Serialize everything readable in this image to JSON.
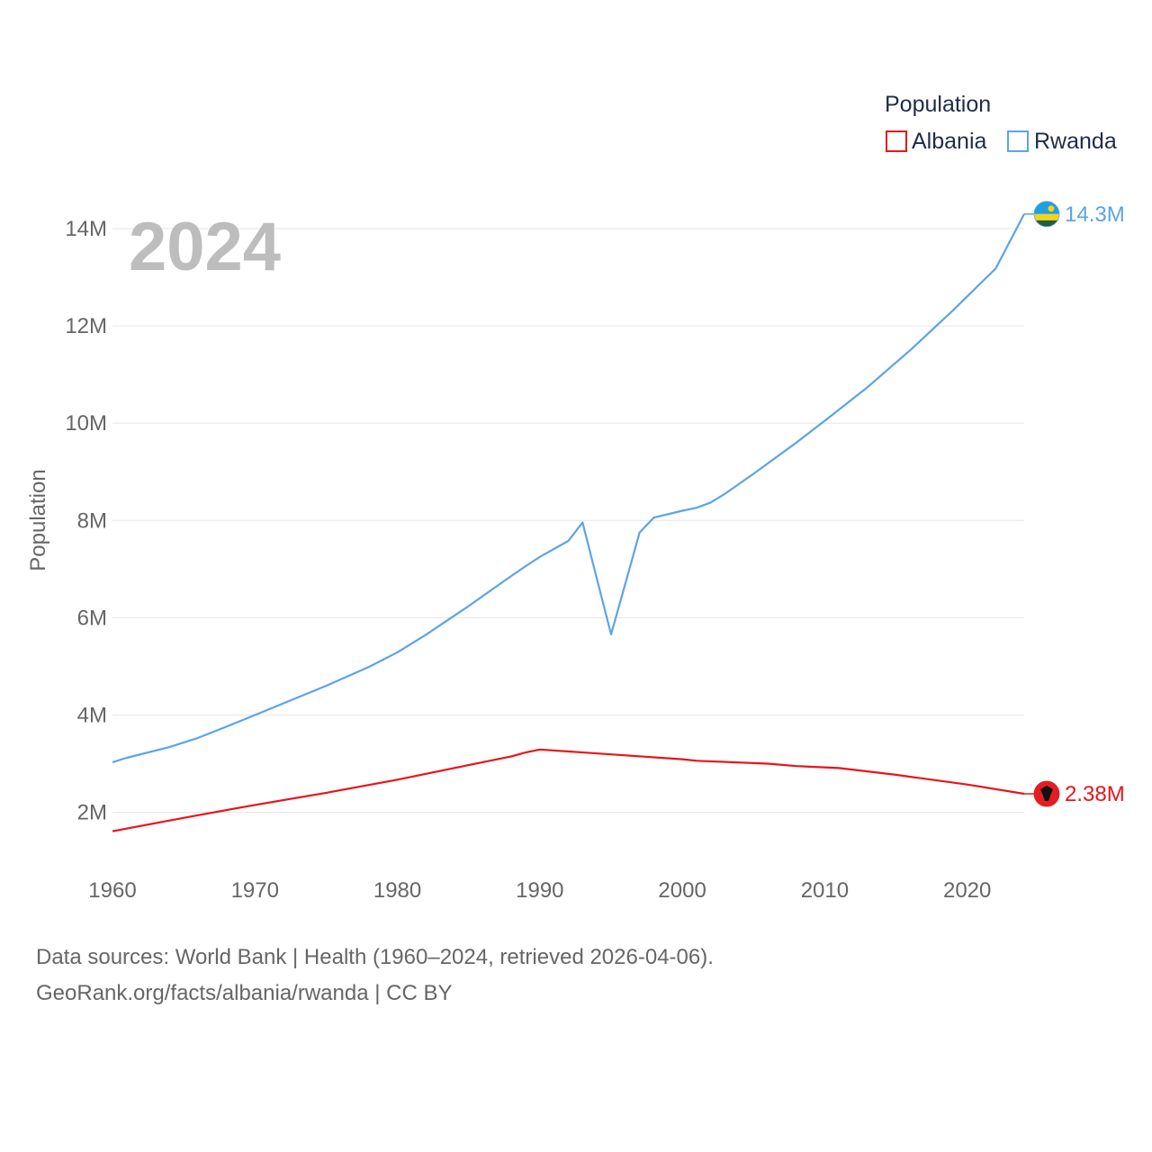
{
  "chart_data": {
    "type": "line",
    "year_display": "2024",
    "legend_title": "Population",
    "ylabel": "Population",
    "xlim": [
      1960,
      2024
    ],
    "ylim": [
      900000,
      15000000
    ],
    "x_ticks": [
      1960,
      1970,
      1980,
      1990,
      2000,
      2010,
      2020
    ],
    "y_ticks": [
      {
        "value": 2000000,
        "label": "2M"
      },
      {
        "value": 4000000,
        "label": "4M"
      },
      {
        "value": 6000000,
        "label": "6M"
      },
      {
        "value": 8000000,
        "label": "8M"
      },
      {
        "value": 10000000,
        "label": "10M"
      },
      {
        "value": 12000000,
        "label": "12M"
      },
      {
        "value": 14000000,
        "label": "14M"
      }
    ],
    "series": [
      {
        "name": "Albania",
        "color": "#e8141a",
        "end_label": "2.38M",
        "flag": "albania-flag-icon",
        "points": [
          [
            1960,
            1610000
          ],
          [
            1964,
            1830000
          ],
          [
            1966,
            1940000
          ],
          [
            1970,
            2150000
          ],
          [
            1975,
            2400000
          ],
          [
            1980,
            2670000
          ],
          [
            1985,
            2970000
          ],
          [
            1988,
            3150000
          ],
          [
            1989,
            3230000
          ],
          [
            1990,
            3290000
          ],
          [
            1995,
            3190000
          ],
          [
            2000,
            3090000
          ],
          [
            2001,
            3060000
          ],
          [
            2006,
            3000000
          ],
          [
            2008,
            2950000
          ],
          [
            2011,
            2910000
          ],
          [
            2015,
            2770000
          ],
          [
            2020,
            2570000
          ],
          [
            2024,
            2380000
          ]
        ]
      },
      {
        "name": "Rwanda",
        "color": "#5ba4e6",
        "end_label": "14.3M",
        "flag": "rwanda-flag-icon",
        "points": [
          [
            1960,
            3030000
          ],
          [
            1961,
            3120000
          ],
          [
            1964,
            3340000
          ],
          [
            1966,
            3530000
          ],
          [
            1968,
            3760000
          ],
          [
            1970,
            4000000
          ],
          [
            1972,
            4240000
          ],
          [
            1975,
            4600000
          ],
          [
            1978,
            4990000
          ],
          [
            1980,
            5290000
          ],
          [
            1982,
            5650000
          ],
          [
            1985,
            6240000
          ],
          [
            1988,
            6860000
          ],
          [
            1989,
            7060000
          ],
          [
            1990,
            7250000
          ],
          [
            1992,
            7580000
          ],
          [
            1993,
            7960000
          ],
          [
            1994,
            6800000
          ],
          [
            1995,
            5660000
          ],
          [
            1996,
            6700000
          ],
          [
            1997,
            7750000
          ],
          [
            1998,
            8060000
          ],
          [
            2000,
            8200000
          ],
          [
            2001,
            8260000
          ],
          [
            2002,
            8370000
          ],
          [
            2003,
            8550000
          ],
          [
            2005,
            8960000
          ],
          [
            2008,
            9600000
          ],
          [
            2010,
            10050000
          ],
          [
            2013,
            10740000
          ],
          [
            2016,
            11500000
          ],
          [
            2019,
            12320000
          ],
          [
            2022,
            13180000
          ],
          [
            2024,
            14300000
          ]
        ]
      }
    ]
  },
  "footer": {
    "line1": "Data sources: World Bank | Health (1960–2024, retrieved 2026-04-06).",
    "line2": "GeoRank.org/facts/albania/rwanda | CC BY"
  }
}
